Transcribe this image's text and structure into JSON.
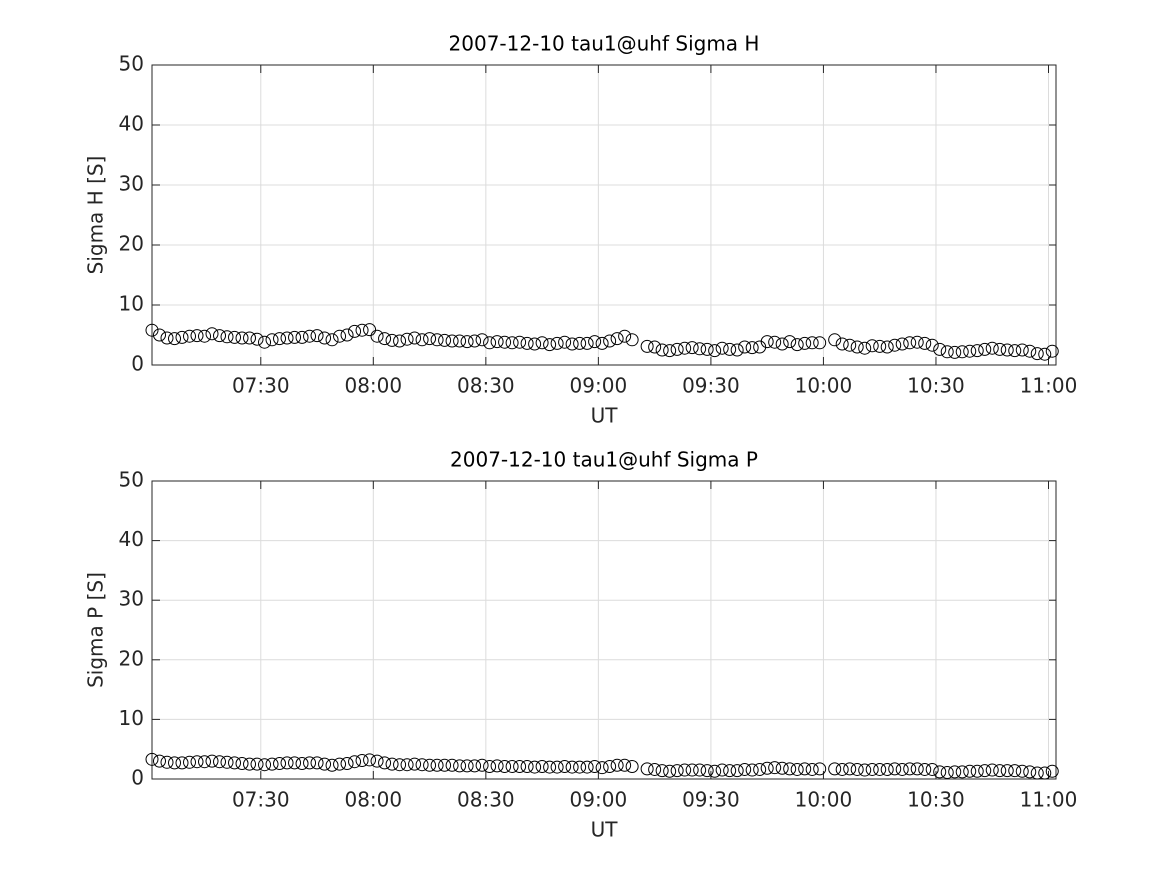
{
  "chart_data": [
    {
      "type": "scatter",
      "title": "2007-12-10  tau1@uhf Sigma H",
      "xlabel": "UT",
      "ylabel": "Sigma H [S]",
      "x": [
        "07:01",
        "07:03",
        "07:05",
        "07:07",
        "07:09",
        "07:11",
        "07:13",
        "07:15",
        "07:17",
        "07:19",
        "07:21",
        "07:23",
        "07:25",
        "07:27",
        "07:29",
        "07:31",
        "07:33",
        "07:35",
        "07:37",
        "07:39",
        "07:41",
        "07:43",
        "07:45",
        "07:47",
        "07:49",
        "07:51",
        "07:53",
        "07:55",
        "07:57",
        "07:59",
        "08:01",
        "08:03",
        "08:05",
        "08:07",
        "08:09",
        "08:11",
        "08:13",
        "08:15",
        "08:17",
        "08:19",
        "08:21",
        "08:23",
        "08:25",
        "08:27",
        "08:29",
        "08:31",
        "08:33",
        "08:35",
        "08:37",
        "08:39",
        "08:41",
        "08:43",
        "08:45",
        "08:47",
        "08:49",
        "08:51",
        "08:53",
        "08:55",
        "08:57",
        "08:59",
        "09:01",
        "09:03",
        "09:05",
        "09:07",
        "09:09",
        "09:13",
        "09:15",
        "09:17",
        "09:19",
        "09:21",
        "09:23",
        "09:25",
        "09:27",
        "09:29",
        "09:31",
        "09:33",
        "09:35",
        "09:37",
        "09:39",
        "09:41",
        "09:43",
        "09:45",
        "09:47",
        "09:49",
        "09:51",
        "09:53",
        "09:55",
        "09:57",
        "09:59",
        "10:03",
        "10:05",
        "10:07",
        "10:09",
        "10:11",
        "10:13",
        "10:15",
        "10:17",
        "10:19",
        "10:21",
        "10:23",
        "10:25",
        "10:27",
        "10:29",
        "10:31",
        "10:33",
        "10:35",
        "10:37",
        "10:39",
        "10:41",
        "10:43",
        "10:45",
        "10:47",
        "10:49",
        "10:51",
        "10:53",
        "10:55",
        "10:57",
        "10:59",
        "11:01"
      ],
      "series": [
        {
          "name": "Sigma H",
          "color": "#000000",
          "values": [
            5.8,
            5.0,
            4.5,
            4.4,
            4.6,
            4.8,
            4.9,
            4.8,
            5.2,
            4.9,
            4.7,
            4.6,
            4.5,
            4.5,
            4.3,
            3.8,
            4.2,
            4.4,
            4.5,
            4.6,
            4.6,
            4.8,
            4.9,
            4.5,
            4.2,
            4.8,
            5.0,
            5.6,
            5.8,
            5.9,
            4.8,
            4.4,
            4.1,
            4.0,
            4.3,
            4.5,
            4.2,
            4.4,
            4.2,
            4.1,
            4.0,
            4.0,
            3.9,
            4.0,
            4.2,
            3.7,
            3.9,
            3.8,
            3.7,
            3.8,
            3.6,
            3.5,
            3.7,
            3.4,
            3.6,
            3.8,
            3.5,
            3.6,
            3.6,
            3.9,
            3.6,
            4.0,
            4.4,
            4.8,
            4.2,
            3.1,
            3.0,
            2.5,
            2.4,
            2.6,
            2.8,
            2.9,
            2.7,
            2.6,
            2.4,
            2.8,
            2.6,
            2.5,
            3.0,
            2.9,
            3.0,
            3.9,
            3.8,
            3.5,
            3.9,
            3.4,
            3.6,
            3.7,
            3.7,
            4.2,
            3.5,
            3.3,
            3.0,
            2.8,
            3.2,
            3.1,
            3.0,
            3.3,
            3.5,
            3.7,
            3.8,
            3.6,
            3.3,
            2.6,
            2.2,
            2.1,
            2.2,
            2.3,
            2.4,
            2.6,
            2.8,
            2.6,
            2.5,
            2.4,
            2.5,
            2.3,
            1.9,
            1.8,
            2.3
          ]
        }
      ],
      "xlim": [
        "07:01",
        "11:02"
      ],
      "xticks": [
        "07:30",
        "08:00",
        "08:30",
        "09:00",
        "09:30",
        "10:00",
        "10:30",
        "11:00"
      ],
      "ylim": [
        0,
        50
      ],
      "yticks": [
        0,
        10,
        20,
        30,
        40,
        50
      ],
      "grid": true
    },
    {
      "type": "scatter",
      "title": "2007-12-10  tau1@uhf Sigma P",
      "xlabel": "UT",
      "ylabel": "Sigma P [S]",
      "x": [
        "07:01",
        "07:03",
        "07:05",
        "07:07",
        "07:09",
        "07:11",
        "07:13",
        "07:15",
        "07:17",
        "07:19",
        "07:21",
        "07:23",
        "07:25",
        "07:27",
        "07:29",
        "07:31",
        "07:33",
        "07:35",
        "07:37",
        "07:39",
        "07:41",
        "07:43",
        "07:45",
        "07:47",
        "07:49",
        "07:51",
        "07:53",
        "07:55",
        "07:57",
        "07:59",
        "08:01",
        "08:03",
        "08:05",
        "08:07",
        "08:09",
        "08:11",
        "08:13",
        "08:15",
        "08:17",
        "08:19",
        "08:21",
        "08:23",
        "08:25",
        "08:27",
        "08:29",
        "08:31",
        "08:33",
        "08:35",
        "08:37",
        "08:39",
        "08:41",
        "08:43",
        "08:45",
        "08:47",
        "08:49",
        "08:51",
        "08:53",
        "08:55",
        "08:57",
        "08:59",
        "09:01",
        "09:03",
        "09:05",
        "09:07",
        "09:09",
        "09:13",
        "09:15",
        "09:17",
        "09:19",
        "09:21",
        "09:23",
        "09:25",
        "09:27",
        "09:29",
        "09:31",
        "09:33",
        "09:35",
        "09:37",
        "09:39",
        "09:41",
        "09:43",
        "09:45",
        "09:47",
        "09:49",
        "09:51",
        "09:53",
        "09:55",
        "09:57",
        "09:59",
        "10:03",
        "10:05",
        "10:07",
        "10:09",
        "10:11",
        "10:13",
        "10:15",
        "10:17",
        "10:19",
        "10:21",
        "10:23",
        "10:25",
        "10:27",
        "10:29",
        "10:31",
        "10:33",
        "10:35",
        "10:37",
        "10:39",
        "10:41",
        "10:43",
        "10:45",
        "10:47",
        "10:49",
        "10:51",
        "10:53",
        "10:55",
        "10:57",
        "10:59",
        "11:01"
      ],
      "series": [
        {
          "name": "Sigma P",
          "color": "#000000",
          "values": [
            3.3,
            3.0,
            2.8,
            2.7,
            2.7,
            2.8,
            2.9,
            2.9,
            3.0,
            2.9,
            2.8,
            2.7,
            2.6,
            2.5,
            2.5,
            2.4,
            2.5,
            2.6,
            2.7,
            2.7,
            2.6,
            2.7,
            2.7,
            2.5,
            2.3,
            2.5,
            2.6,
            2.9,
            3.1,
            3.2,
            3.0,
            2.7,
            2.5,
            2.4,
            2.4,
            2.5,
            2.4,
            2.3,
            2.3,
            2.3,
            2.3,
            2.2,
            2.2,
            2.2,
            2.3,
            2.1,
            2.2,
            2.1,
            2.1,
            2.1,
            2.1,
            2.0,
            2.1,
            2.0,
            2.0,
            2.1,
            2.0,
            2.0,
            2.0,
            2.1,
            1.9,
            2.1,
            2.3,
            2.3,
            2.1,
            1.7,
            1.6,
            1.4,
            1.3,
            1.4,
            1.5,
            1.5,
            1.5,
            1.4,
            1.3,
            1.5,
            1.4,
            1.4,
            1.6,
            1.5,
            1.6,
            1.8,
            1.9,
            1.8,
            1.7,
            1.6,
            1.7,
            1.6,
            1.7,
            1.7,
            1.6,
            1.7,
            1.6,
            1.5,
            1.6,
            1.6,
            1.6,
            1.7,
            1.6,
            1.7,
            1.7,
            1.6,
            1.6,
            1.2,
            1.1,
            1.2,
            1.2,
            1.3,
            1.3,
            1.4,
            1.5,
            1.4,
            1.4,
            1.4,
            1.3,
            1.2,
            1.0,
            1.0,
            1.3
          ]
        }
      ],
      "xlim": [
        "07:01",
        "11:02"
      ],
      "xticks": [
        "07:30",
        "08:00",
        "08:30",
        "09:00",
        "09:30",
        "10:00",
        "10:30",
        "11:00"
      ],
      "ylim": [
        0,
        50
      ],
      "yticks": [
        0,
        10,
        20,
        30,
        40,
        50
      ],
      "grid": true
    }
  ]
}
